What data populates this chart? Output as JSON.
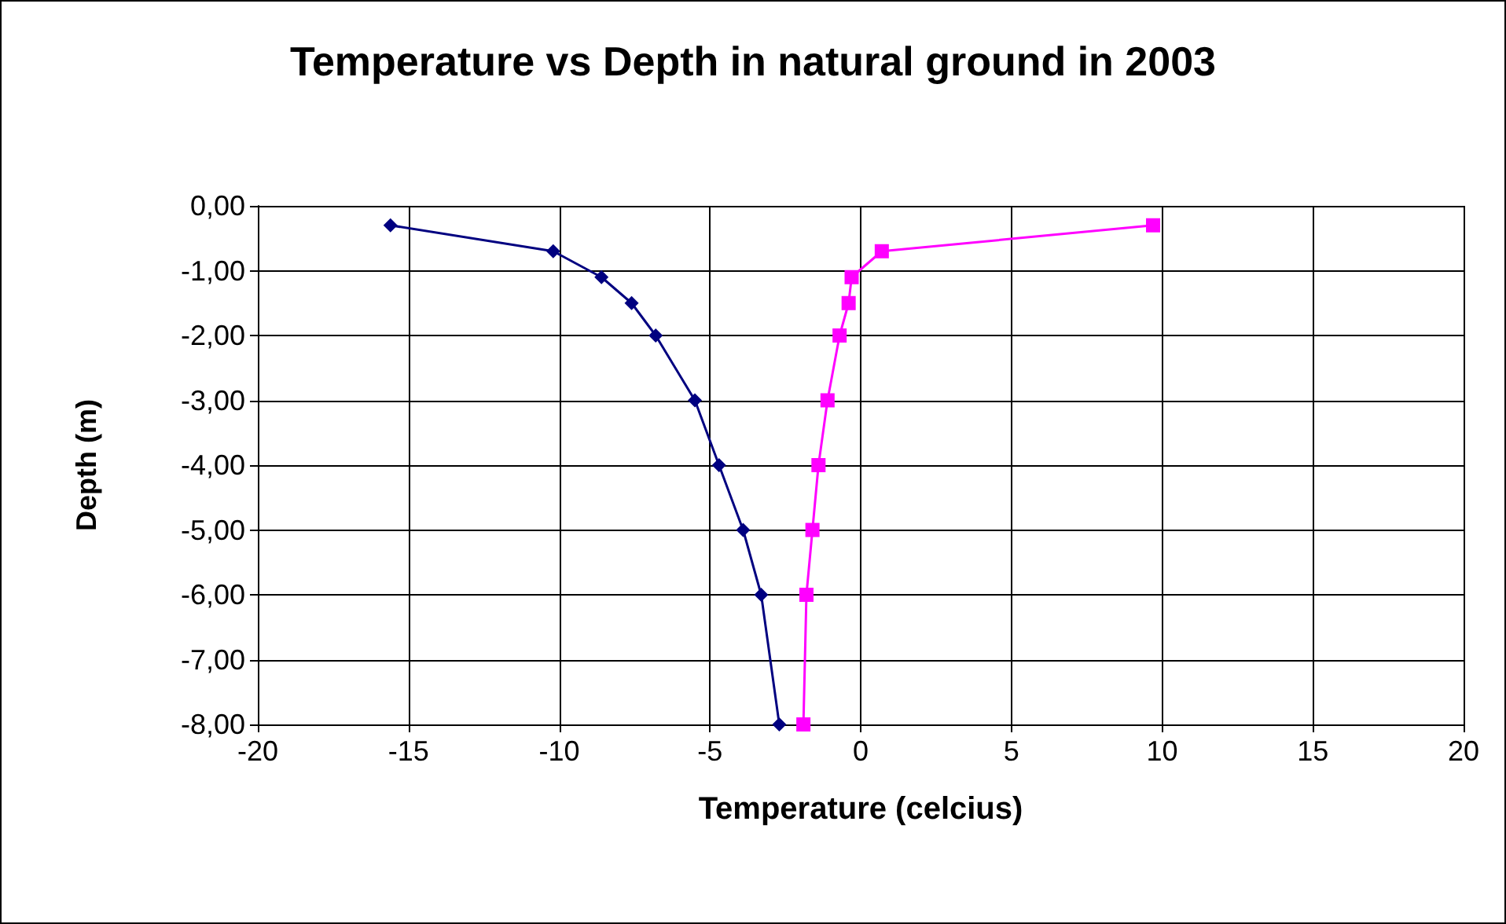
{
  "chart_data": {
    "type": "line",
    "title": "Temperature vs Depth in natural ground in 2003",
    "xlabel": "Temperature (celcius)",
    "ylabel": "Depth (m)",
    "series": [
      {
        "color": "#000080",
        "marker": "diamond",
        "x": [
          -15.6,
          -10.2,
          -8.6,
          -7.6,
          -6.8,
          -5.5,
          -4.7,
          -3.9,
          -3.3,
          -2.7
        ],
        "values": [
          -0.3,
          -0.7,
          -1.1,
          -1.5,
          -2.0,
          -3.0,
          -4.0,
          -5.0,
          -6.0,
          -8.0
        ]
      },
      {
        "color": "#ff00ff",
        "marker": "square",
        "x": [
          9.7,
          0.7,
          -0.3,
          -0.4,
          -0.7,
          -1.1,
          -1.4,
          -1.6,
          -1.8,
          -1.9
        ],
        "values": [
          -0.3,
          -0.7,
          -1.1,
          -1.5,
          -2.0,
          -3.0,
          -4.0,
          -5.0,
          -6.0,
          -8.0
        ]
      }
    ],
    "xlim": [
      -20,
      20
    ],
    "xticks": [
      -20,
      -15,
      -10,
      -5,
      0,
      5,
      10,
      15,
      20
    ],
    "ylim": [
      -8,
      0
    ],
    "yticks": [
      {
        "value": 0,
        "label": "0,00"
      },
      {
        "value": -1,
        "label": "-1,00"
      },
      {
        "value": -2,
        "label": "-2,00"
      },
      {
        "value": -3,
        "label": "-3,00"
      },
      {
        "value": -4,
        "label": "-4,00"
      },
      {
        "value": -5,
        "label": "-5,00"
      },
      {
        "value": -6,
        "label": "-6,00"
      },
      {
        "value": -7,
        "label": "-7,00"
      },
      {
        "value": -8,
        "label": "-8,00"
      }
    ],
    "grid": true,
    "line_style": "solid"
  }
}
